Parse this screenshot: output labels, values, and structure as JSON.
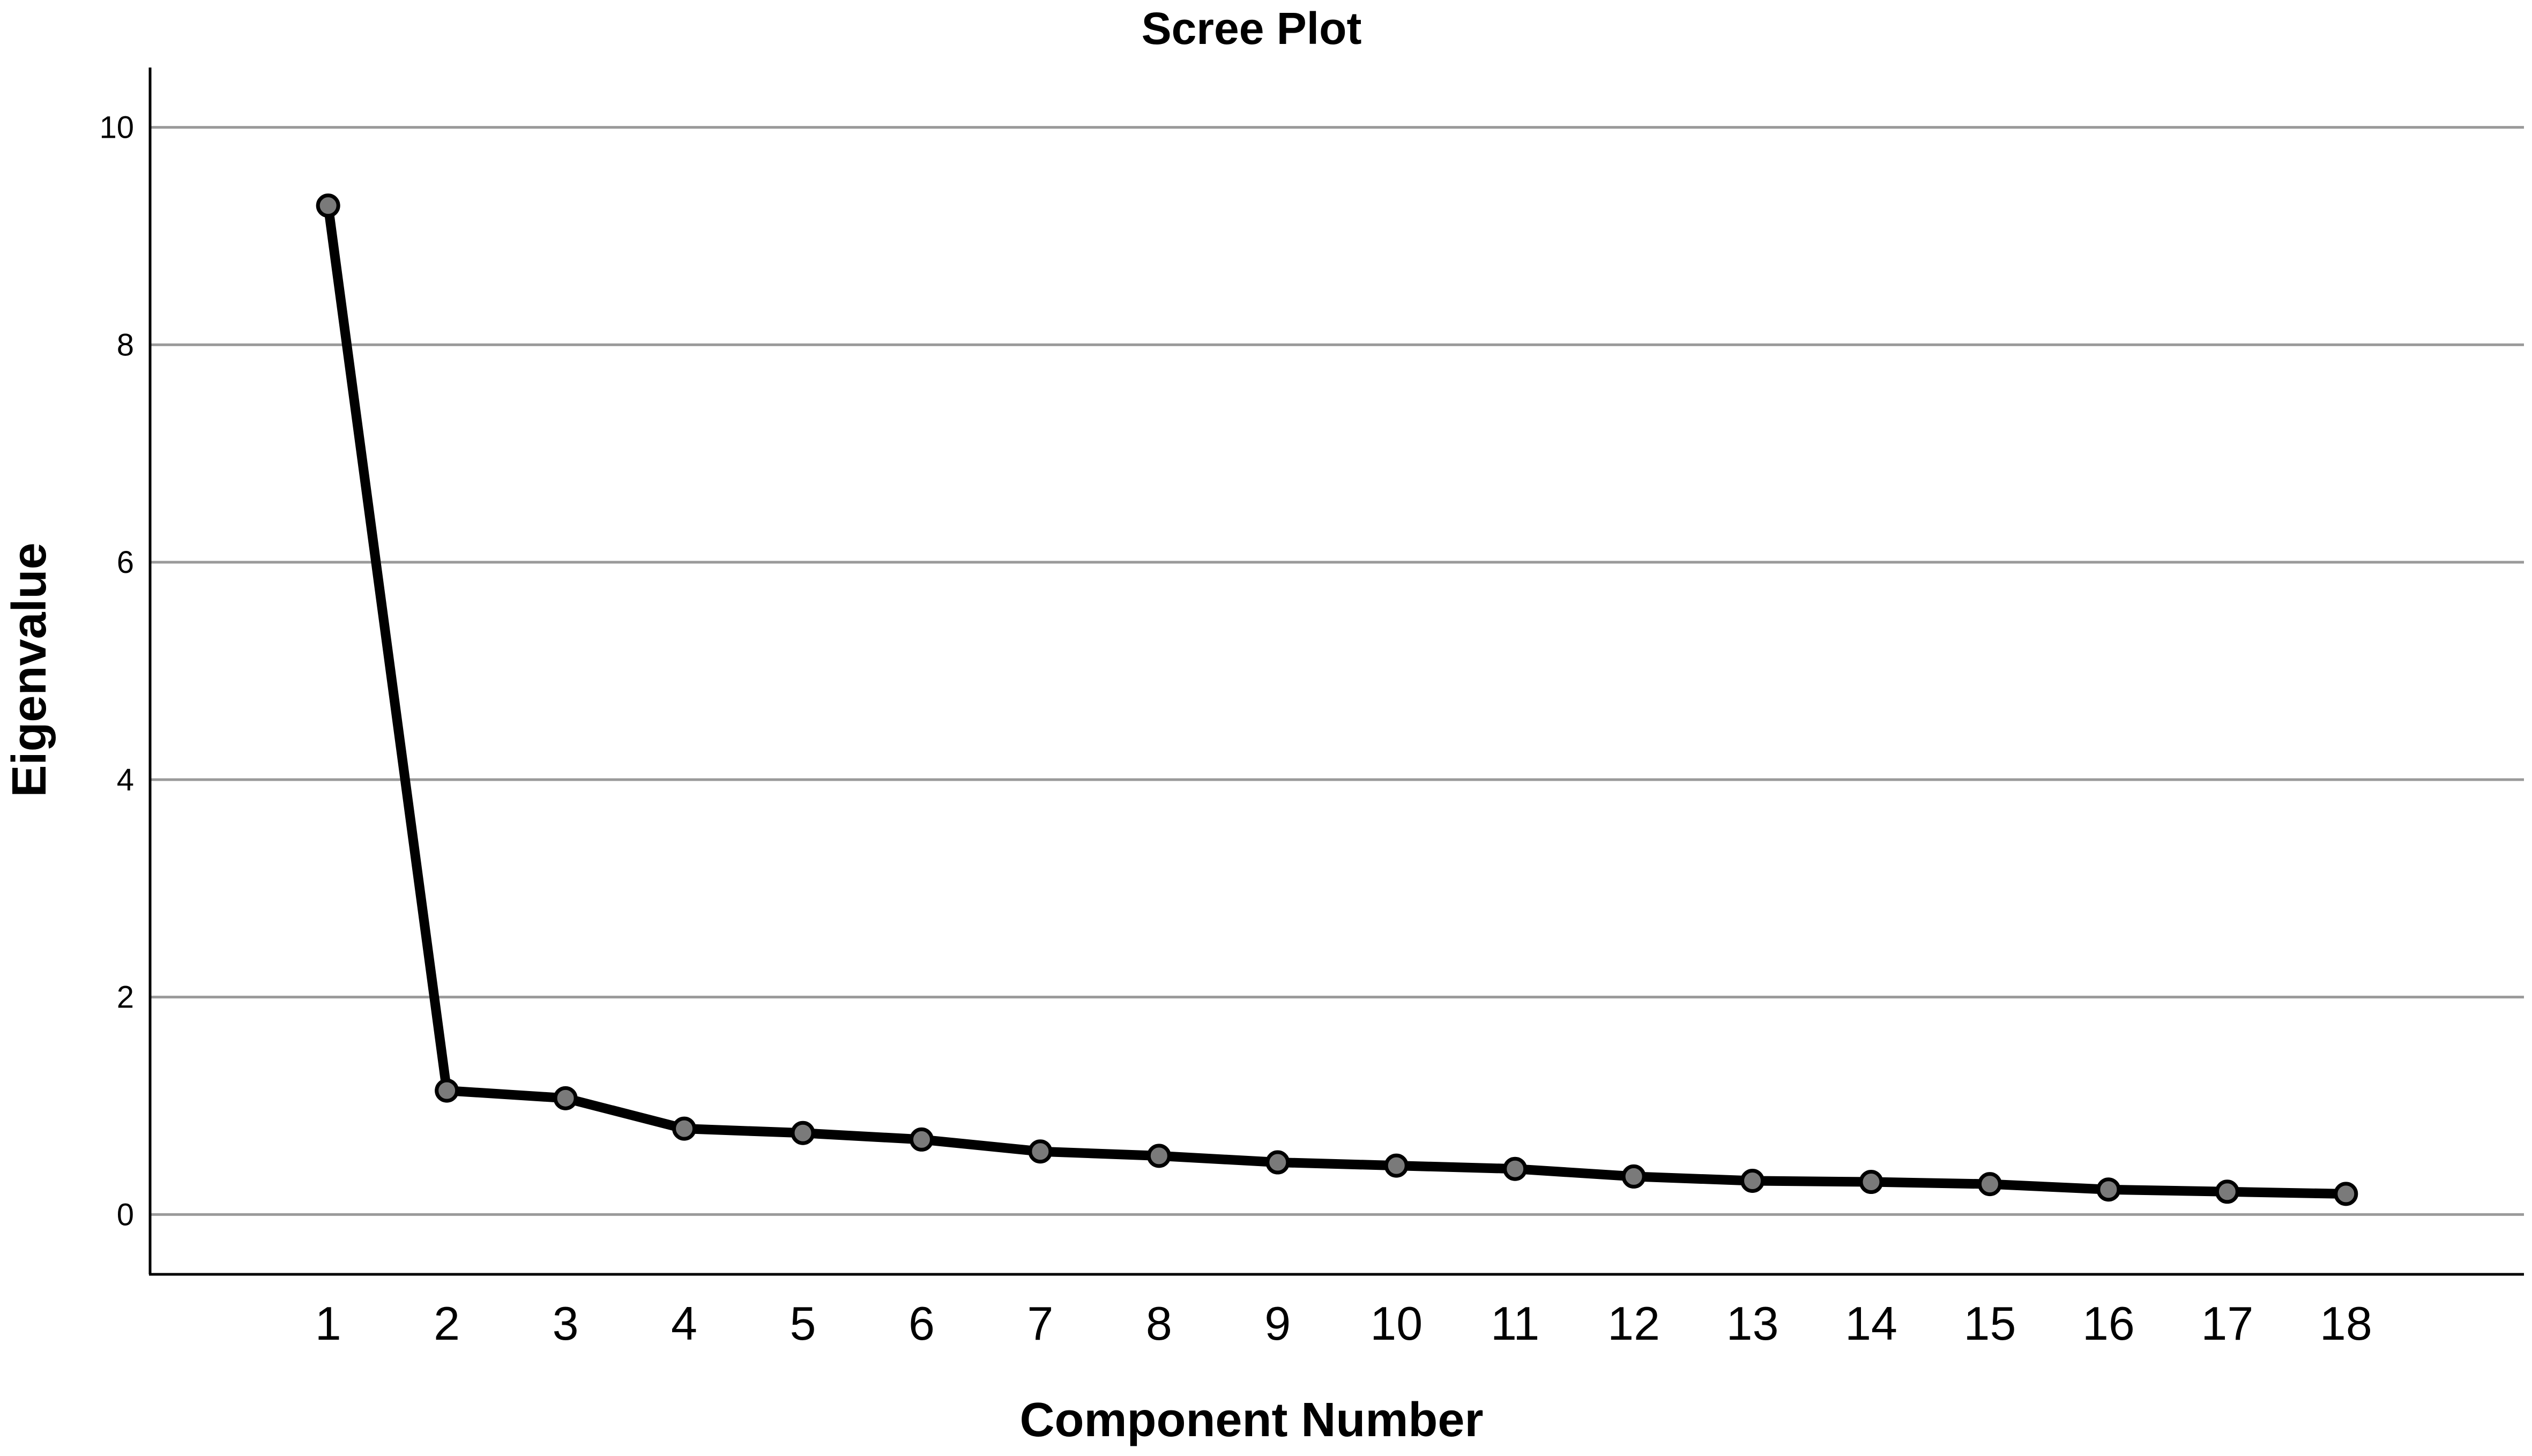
{
  "chart_data": {
    "type": "line",
    "title": "Scree Plot",
    "xlabel": "Component Number",
    "ylabel": "Eigenvalue",
    "x": [
      1,
      2,
      3,
      4,
      5,
      6,
      7,
      8,
      9,
      10,
      11,
      12,
      13,
      14,
      15,
      16,
      17,
      18
    ],
    "series": [
      {
        "values": [
          9.28,
          1.14,
          1.07,
          0.79,
          0.75,
          0.69,
          0.58,
          0.54,
          0.48,
          0.45,
          0.42,
          0.35,
          0.31,
          0.3,
          0.28,
          0.23,
          0.21,
          0.19
        ]
      }
    ],
    "yticks": [
      0,
      2,
      4,
      6,
      8,
      10
    ],
    "ylim": [
      -0.55,
      10.55
    ],
    "xlim": [
      -0.5,
      19.5
    ],
    "grid": "horizontal",
    "legend": "none",
    "colors": {
      "line": "#000000",
      "marker_fill": "#7a7a7a",
      "grid": "#9a9a9a"
    }
  }
}
